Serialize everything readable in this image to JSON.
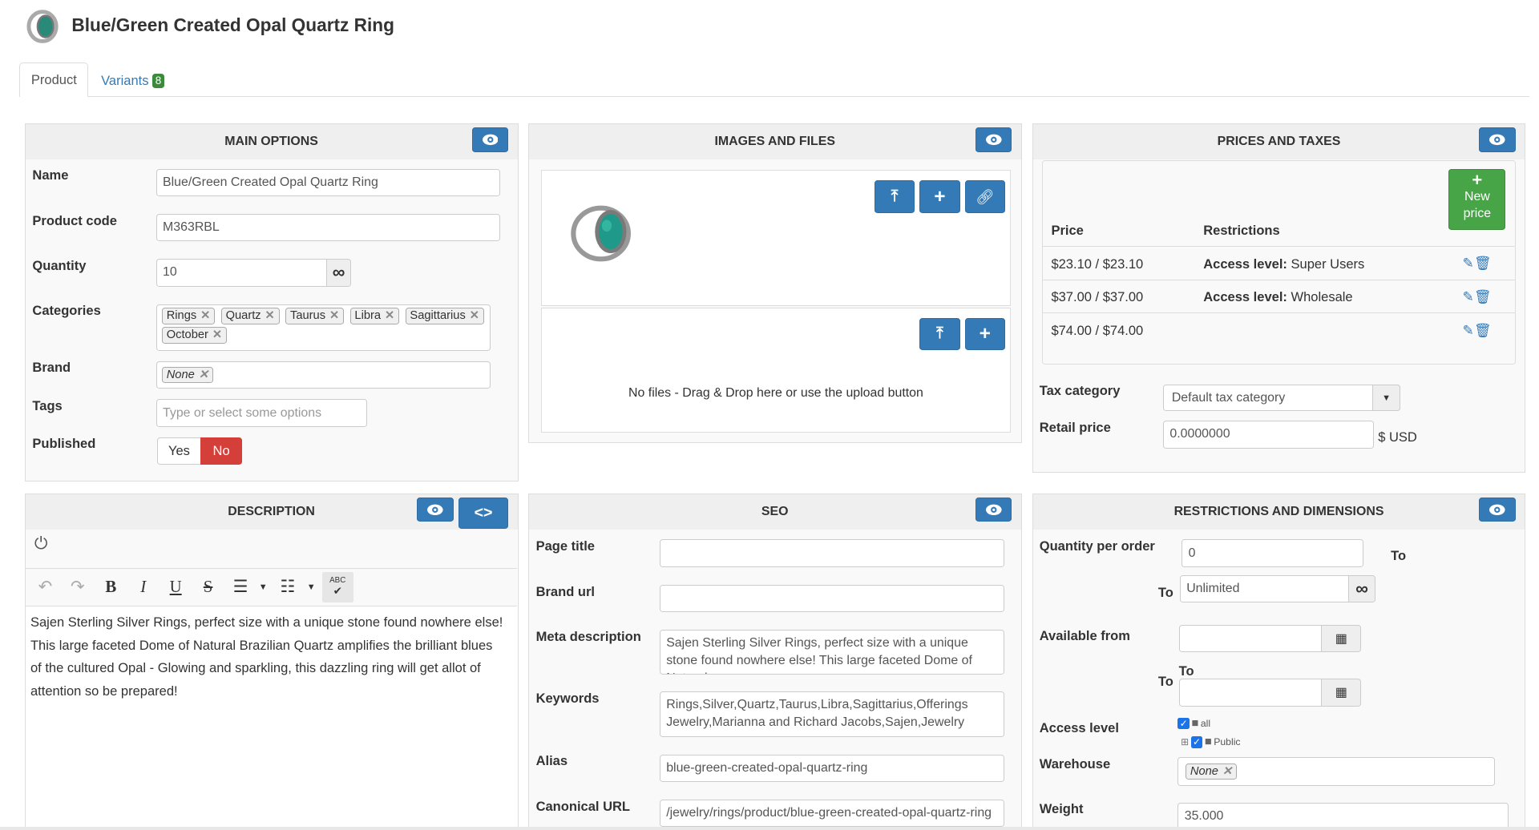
{
  "header": {
    "title": "Blue/Green Created Opal Quartz Ring",
    "logo": "ring-product-thumbnail"
  },
  "tabs": [
    {
      "label": "Product",
      "active": true
    },
    {
      "label": "Variants",
      "badge": "8"
    }
  ],
  "colors": {
    "primary": "#337ab7",
    "success": "#47a447",
    "danger": "#d43f3a",
    "badge": "#3c8b3c"
  },
  "main_options": {
    "title": "MAIN OPTIONS",
    "name_label": "Name",
    "name_value": "Blue/Green Created Opal Quartz Ring",
    "code_label": "Product code",
    "code_value": "M363RBL",
    "quantity_label": "Quantity",
    "quantity_value": "10",
    "quantity_addon": "∞",
    "categories_label": "Categories",
    "categories": [
      "Rings",
      "Quartz",
      "Taurus",
      "Libra",
      "Sagittarius",
      "October"
    ],
    "brand_label": "Brand",
    "brand_value": "None",
    "tags_label": "Tags",
    "tags_placeholder": "Type or select some options",
    "published_label": "Published",
    "published_yes": "Yes",
    "published_no": "No",
    "published_selected": "No"
  },
  "images": {
    "title": "IMAGES AND FILES",
    "no_files": "No files - Drag & Drop here or use the upload button"
  },
  "prices": {
    "title": "PRICES AND TAXES",
    "new_price": "New price",
    "col_price": "Price",
    "col_restrictions": "Restrictions",
    "rows": [
      {
        "price": "$23.10 / $23.10",
        "restriction_label": "Access level:",
        "restriction_value": " Super Users"
      },
      {
        "price": "$37.00 / $37.00",
        "restriction_label": "Access level:",
        "restriction_value": " Wholesale"
      },
      {
        "price": "$74.00 / $74.00",
        "restriction_label": "",
        "restriction_value": ""
      }
    ],
    "tax_label": "Tax category",
    "tax_value": "Default tax category",
    "retail_label": "Retail price",
    "retail_value": "0.0000000",
    "currency": "$ USD"
  },
  "description": {
    "title": "DESCRIPTION",
    "text": "Sajen Sterling Silver Rings, perfect size with a unique stone found nowhere else! This large faceted Dome of Natural Brazilian Quartz amplifies the brilliant blues of the cultured Opal - Glowing and sparkling, this dazzling ring will get allot of attention so be prepared!",
    "toolbar": {
      "bold": "B",
      "italic": "I",
      "underline": "U",
      "strike": "S",
      "spell": "ABC"
    }
  },
  "seo": {
    "title": "SEO",
    "page_title_label": "Page title",
    "page_title_value": "",
    "brand_url_label": "Brand url",
    "brand_url_value": "",
    "meta_label": "Meta description",
    "meta_value": "Sajen Sterling Silver Rings, perfect size with a unique stone found nowhere else!  This large faceted Dome of Natural",
    "keywords_label": "Keywords",
    "keywords_value": "Rings,Silver,Quartz,Taurus,Libra,Sagittarius,Offerings Jewelry,Marianna and Richard Jacobs,Sajen,Jewelry",
    "alias_label": "Alias",
    "alias_value": "blue-green-created-opal-quartz-ring",
    "canonical_label": "Canonical URL",
    "canonical_value": "/jewelry/rings/product/blue-green-created-opal-quartz-ring"
  },
  "restrictions": {
    "title": "RESTRICTIONS AND DIMENSIONS",
    "qty_label": "Quantity per order",
    "qty_min": "0",
    "to": "To",
    "qty_max": "Unlimited",
    "qty_addon": "∞",
    "available_label": "Available from",
    "available_from": "",
    "available_to": "",
    "access_label": "Access level",
    "access_all": "all",
    "access_public": "Public",
    "warehouse_label": "Warehouse",
    "warehouse_value": "None",
    "weight_label": "Weight",
    "weight_value": "35.000"
  }
}
